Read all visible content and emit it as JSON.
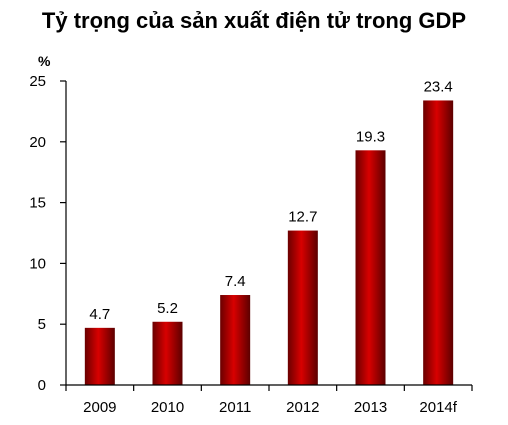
{
  "chart_data": {
    "type": "bar",
    "title": "Tỷ trọng của sản xuất điện tử trong GDP",
    "unit_label": "%",
    "categories": [
      "2009",
      "2010",
      "2011",
      "2012",
      "2013",
      "2014f"
    ],
    "values": [
      4.7,
      5.2,
      7.4,
      12.7,
      19.3,
      23.4
    ],
    "data_labels": [
      "4.7",
      "5.2",
      "7.4",
      "12.7",
      "19.3",
      "23.4"
    ],
    "yticks": [
      "0",
      "5",
      "10",
      "15",
      "20",
      "25"
    ],
    "ylim": [
      0,
      25
    ],
    "grid": false,
    "legend": "none",
    "colors": {
      "bar_dark": "#7a0000",
      "bar_mid": "#d40000",
      "axis": "#000000"
    }
  }
}
